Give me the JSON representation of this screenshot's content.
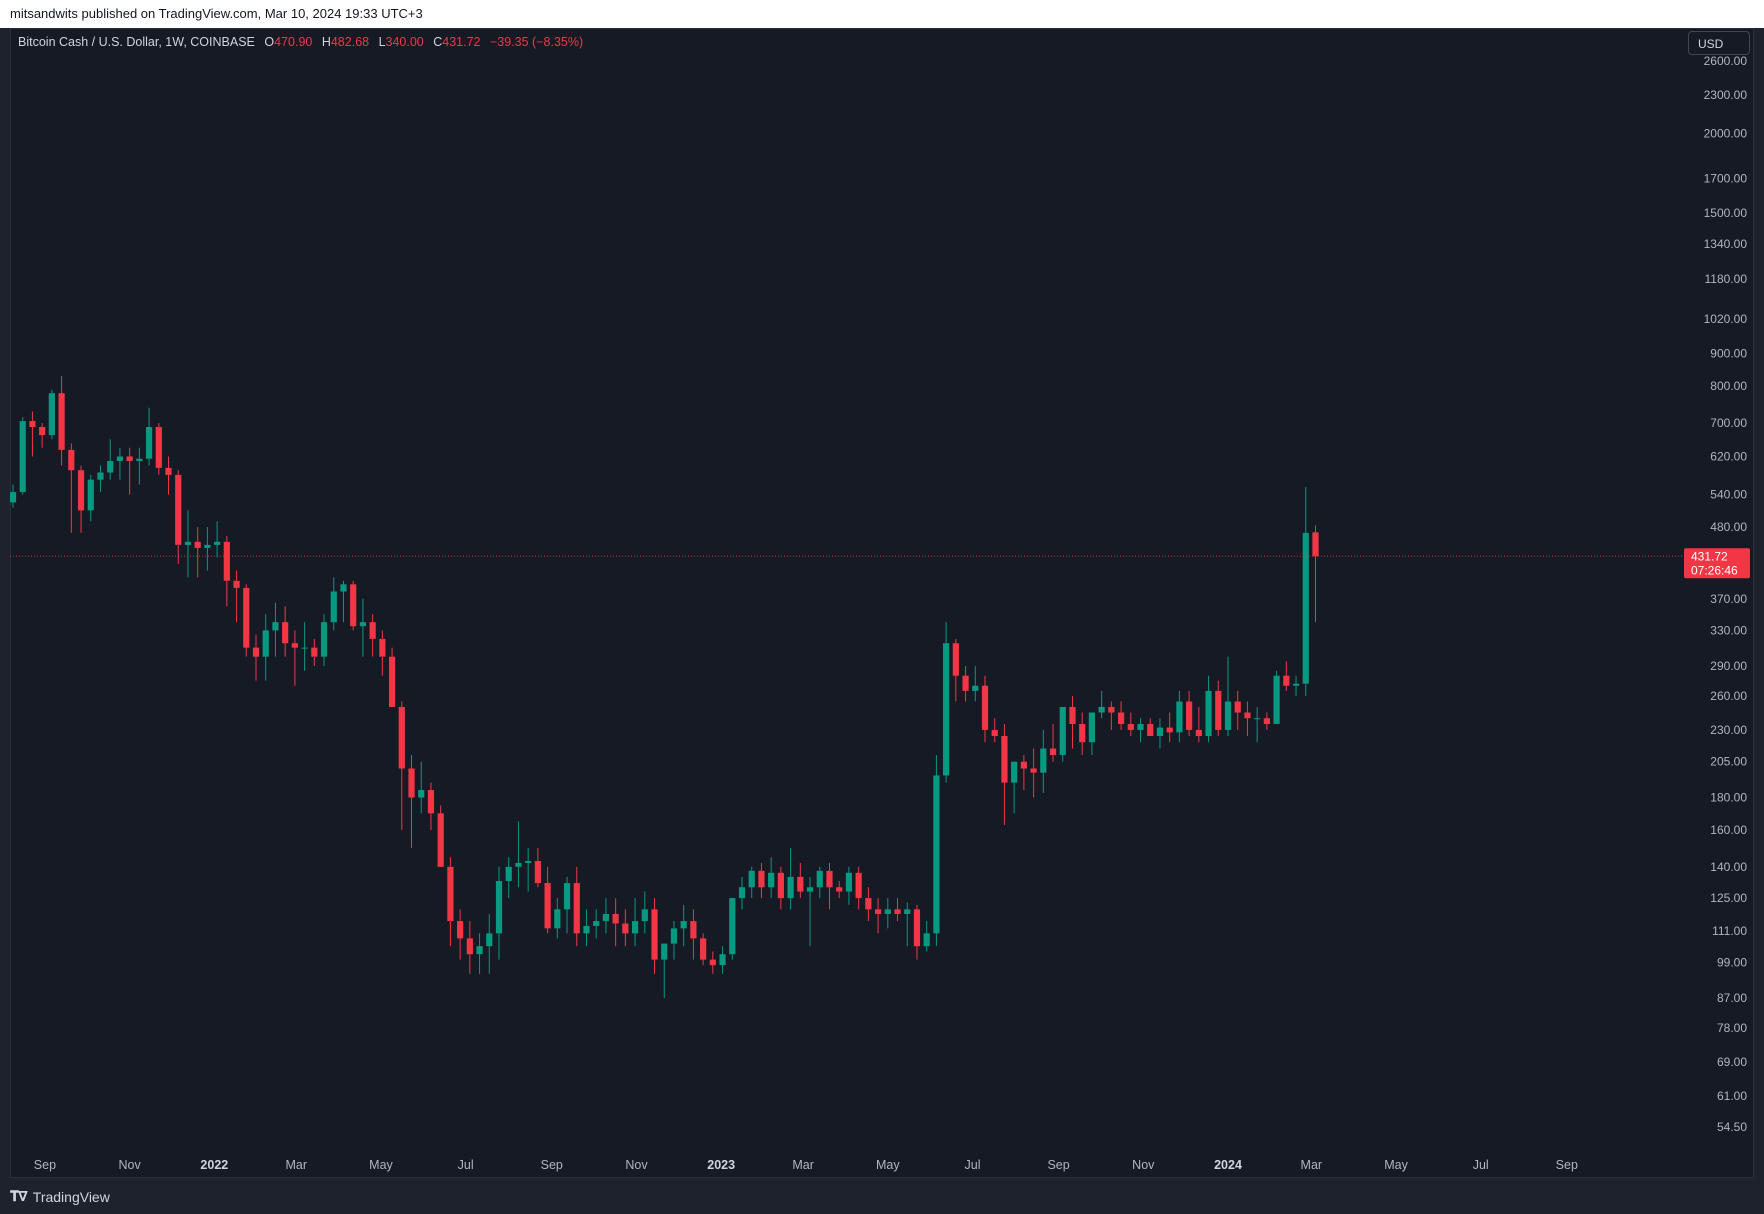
{
  "header": {
    "published": "mitsandwits published on TradingView.com, Mar 10, 2024 19:33 UTC+3"
  },
  "legend": {
    "symbol": "Bitcoin Cash / U.S. Dollar, 1W, COINBASE",
    "o_label": "O",
    "o": "470.90",
    "h_label": "H",
    "h": "482.68",
    "l_label": "L",
    "l": "340.00",
    "c_label": "C",
    "c": "431.72",
    "change": "−39.35 (−8.35%)"
  },
  "currency_button": "USD",
  "price_badge": {
    "price": "431.72",
    "countdown": "07:26:46"
  },
  "footer": {
    "brand": "TradingView"
  },
  "colors": {
    "up": "#089981",
    "down": "#f23645",
    "background": "#161a25",
    "text": "#b2b5be"
  },
  "chart_data": {
    "type": "candlestick",
    "scale": "log",
    "ylim": [
      50,
      2600
    ],
    "y_ticks": [
      "2600.00",
      "2300.00",
      "2000.00",
      "1700.00",
      "1500.00",
      "1340.00",
      "1180.00",
      "1020.00",
      "900.00",
      "800.00",
      "700.00",
      "620.00",
      "540.00",
      "480.00",
      "370.00",
      "330.00",
      "290.00",
      "260.00",
      "230.00",
      "205.00",
      "180.00",
      "160.00",
      "140.00",
      "125.00",
      "111.00",
      "99.00",
      "87.00",
      "78.00",
      "69.00",
      "61.00",
      "54.50"
    ],
    "x_ticks": [
      {
        "label": "Sep",
        "date": "2021-09-01",
        "major": false
      },
      {
        "label": "Nov",
        "date": "2021-11-01",
        "major": false
      },
      {
        "label": "2022",
        "date": "2022-01-01",
        "major": true
      },
      {
        "label": "Mar",
        "date": "2022-03-01",
        "major": false
      },
      {
        "label": "May",
        "date": "2022-05-01",
        "major": false
      },
      {
        "label": "Jul",
        "date": "2022-07-01",
        "major": false
      },
      {
        "label": "Sep",
        "date": "2022-09-01",
        "major": false
      },
      {
        "label": "Nov",
        "date": "2022-11-01",
        "major": false
      },
      {
        "label": "2023",
        "date": "2023-01-01",
        "major": true
      },
      {
        "label": "Mar",
        "date": "2023-03-01",
        "major": false
      },
      {
        "label": "May",
        "date": "2023-05-01",
        "major": false
      },
      {
        "label": "Jul",
        "date": "2023-07-01",
        "major": false
      },
      {
        "label": "Sep",
        "date": "2023-09-01",
        "major": false
      },
      {
        "label": "Nov",
        "date": "2023-11-01",
        "major": false
      },
      {
        "label": "2024",
        "date": "2024-01-01",
        "major": true
      },
      {
        "label": "Mar",
        "date": "2024-03-01",
        "major": false
      },
      {
        "label": "May",
        "date": "2024-05-01",
        "major": false
      },
      {
        "label": "Jul",
        "date": "2024-07-01",
        "major": false
      },
      {
        "label": "Sep",
        "date": "2024-09-01",
        "major": false
      }
    ],
    "current_price": 431.72,
    "first_week": "2021-08-09",
    "interval": "1W",
    "candles": [
      [
        525,
        560,
        515,
        545
      ],
      [
        545,
        715,
        540,
        705
      ],
      [
        705,
        730,
        620,
        690
      ],
      [
        690,
        700,
        640,
        670
      ],
      [
        670,
        790,
        660,
        780
      ],
      [
        780,
        830,
        600,
        635
      ],
      [
        635,
        650,
        470,
        590
      ],
      [
        590,
        600,
        470,
        510
      ],
      [
        510,
        580,
        490,
        570
      ],
      [
        570,
        600,
        545,
        585
      ],
      [
        585,
        660,
        570,
        610
      ],
      [
        610,
        640,
        570,
        620
      ],
      [
        620,
        640,
        540,
        610
      ],
      [
        610,
        640,
        560,
        615
      ],
      [
        615,
        740,
        600,
        690
      ],
      [
        690,
        700,
        580,
        595
      ],
      [
        595,
        620,
        540,
        580
      ],
      [
        580,
        590,
        420,
        450
      ],
      [
        450,
        510,
        400,
        455
      ],
      [
        455,
        480,
        400,
        445
      ],
      [
        445,
        480,
        410,
        450
      ],
      [
        450,
        490,
        430,
        455
      ],
      [
        455,
        465,
        360,
        395
      ],
      [
        395,
        410,
        340,
        385
      ],
      [
        385,
        390,
        300,
        310
      ],
      [
        310,
        325,
        275,
        300
      ],
      [
        300,
        350,
        275,
        330
      ],
      [
        330,
        365,
        300,
        340
      ],
      [
        340,
        360,
        300,
        315
      ],
      [
        315,
        330,
        270,
        310
      ],
      [
        310,
        340,
        285,
        310
      ],
      [
        310,
        320,
        290,
        300
      ],
      [
        300,
        350,
        290,
        340
      ],
      [
        340,
        400,
        330,
        380
      ],
      [
        380,
        395,
        340,
        390
      ],
      [
        390,
        395,
        330,
        335
      ],
      [
        335,
        370,
        300,
        340
      ],
      [
        340,
        350,
        300,
        320
      ],
      [
        320,
        330,
        280,
        300
      ],
      [
        300,
        310,
        250,
        250
      ],
      [
        250,
        255,
        160,
        200
      ],
      [
        200,
        210,
        150,
        180
      ],
      [
        180,
        205,
        170,
        185
      ],
      [
        185,
        190,
        160,
        170
      ],
      [
        170,
        175,
        145,
        140
      ],
      [
        140,
        145,
        105,
        115
      ],
      [
        115,
        120,
        100,
        108
      ],
      [
        108,
        115,
        95,
        102
      ],
      [
        102,
        110,
        95,
        105
      ],
      [
        105,
        118,
        95,
        110
      ],
      [
        110,
        140,
        100,
        133
      ],
      [
        133,
        145,
        125,
        140
      ],
      [
        140,
        165,
        130,
        142
      ],
      [
        142,
        150,
        128,
        143
      ],
      [
        143,
        150,
        130,
        132
      ],
      [
        132,
        140,
        110,
        112
      ],
      [
        112,
        125,
        108,
        120
      ],
      [
        120,
        135,
        110,
        132
      ],
      [
        132,
        140,
        105,
        110
      ],
      [
        110,
        120,
        105,
        113
      ],
      [
        113,
        120,
        108,
        115
      ],
      [
        115,
        125,
        110,
        118
      ],
      [
        118,
        125,
        105,
        114
      ],
      [
        114,
        120,
        105,
        110
      ],
      [
        110,
        125,
        105,
        115
      ],
      [
        115,
        128,
        110,
        120
      ],
      [
        120,
        125,
        95,
        100
      ],
      [
        100,
        105,
        87,
        106
      ],
      [
        106,
        115,
        100,
        112
      ],
      [
        112,
        122,
        105,
        115
      ],
      [
        115,
        120,
        100,
        108
      ],
      [
        108,
        110,
        98,
        100
      ],
      [
        100,
        103,
        95,
        98
      ],
      [
        98,
        105,
        95,
        102
      ],
      [
        102,
        125,
        100,
        125
      ],
      [
        125,
        135,
        120,
        130
      ],
      [
        130,
        140,
        125,
        138
      ],
      [
        138,
        142,
        125,
        130
      ],
      [
        130,
        145,
        125,
        137
      ],
      [
        137,
        140,
        120,
        125
      ],
      [
        125,
        150,
        120,
        135
      ],
      [
        135,
        142,
        125,
        128
      ],
      [
        128,
        135,
        105,
        130
      ],
      [
        130,
        140,
        125,
        138
      ],
      [
        138,
        142,
        120,
        130
      ],
      [
        130,
        133,
        125,
        128
      ],
      [
        128,
        140,
        122,
        137
      ],
      [
        137,
        140,
        120,
        125
      ],
      [
        125,
        130,
        115,
        120
      ],
      [
        120,
        125,
        110,
        118
      ],
      [
        118,
        125,
        112,
        120
      ],
      [
        120,
        125,
        115,
        118
      ],
      [
        118,
        123,
        105,
        120
      ],
      [
        120,
        122,
        100,
        105
      ],
      [
        105,
        115,
        103,
        110
      ],
      [
        110,
        210,
        105,
        195
      ],
      [
        195,
        340,
        190,
        315
      ],
      [
        315,
        320,
        255,
        280
      ],
      [
        280,
        290,
        255,
        265
      ],
      [
        265,
        290,
        255,
        270
      ],
      [
        270,
        280,
        220,
        230
      ],
      [
        230,
        240,
        220,
        225
      ],
      [
        225,
        235,
        163,
        190
      ],
      [
        190,
        205,
        170,
        205
      ],
      [
        205,
        210,
        185,
        200
      ],
      [
        200,
        215,
        180,
        197
      ],
      [
        197,
        230,
        183,
        215
      ],
      [
        215,
        235,
        205,
        210
      ],
      [
        210,
        250,
        205,
        250
      ],
      [
        250,
        260,
        215,
        235
      ],
      [
        235,
        245,
        210,
        220
      ],
      [
        220,
        245,
        210,
        245
      ],
      [
        245,
        265,
        240,
        250
      ],
      [
        250,
        255,
        230,
        245
      ],
      [
        245,
        255,
        230,
        235
      ],
      [
        235,
        245,
        225,
        230
      ],
      [
        230,
        240,
        220,
        235
      ],
      [
        235,
        240,
        225,
        225
      ],
      [
        225,
        240,
        215,
        232
      ],
      [
        232,
        245,
        220,
        228
      ],
      [
        228,
        265,
        220,
        255
      ],
      [
        255,
        265,
        225,
        230
      ],
      [
        230,
        250,
        220,
        225
      ],
      [
        225,
        280,
        220,
        265
      ],
      [
        265,
        275,
        225,
        230
      ],
      [
        230,
        300,
        225,
        255
      ],
      [
        255,
        265,
        230,
        245
      ],
      [
        245,
        255,
        225,
        240
      ],
      [
        240,
        250,
        220,
        240
      ],
      [
        240,
        245,
        230,
        235
      ],
      [
        235,
        285,
        235,
        280
      ],
      [
        280,
        295,
        265,
        270
      ],
      [
        270,
        280,
        260,
        272
      ],
      [
        272,
        555,
        260,
        470
      ],
      [
        470.9,
        482.68,
        340,
        431.72
      ]
    ]
  }
}
